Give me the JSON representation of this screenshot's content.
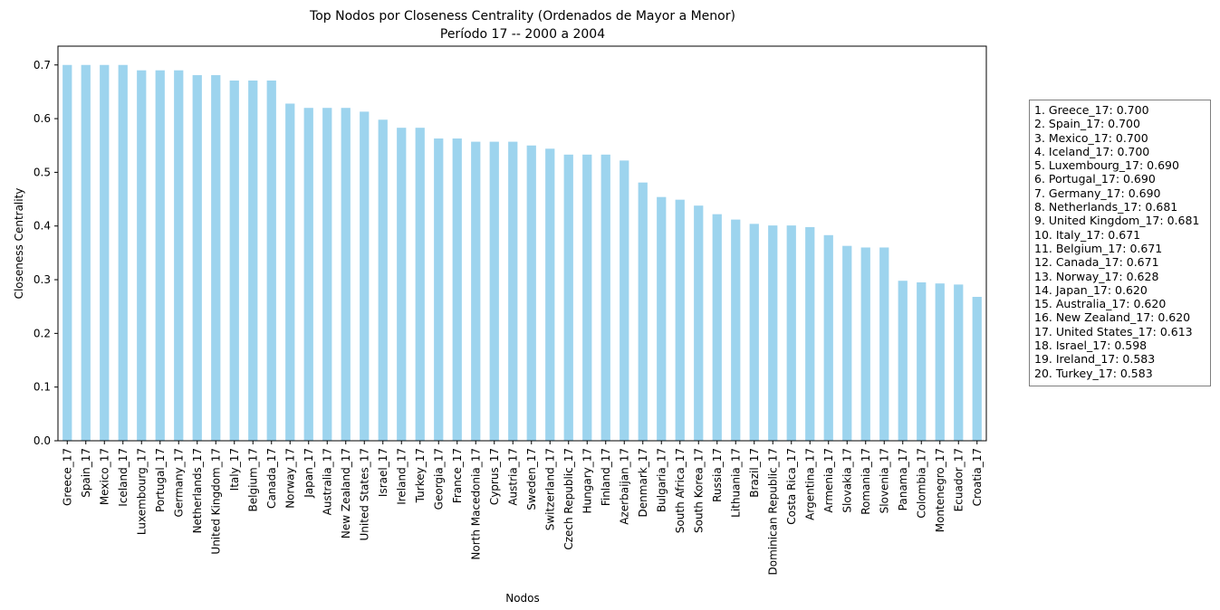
{
  "chart_data": {
    "type": "bar",
    "title": "Top Nodos por Closeness Centrality (Ordenados de Mayor a Menor)",
    "subtitle": "Período 17 -- 2000 a 2004",
    "xlabel": "Nodos",
    "ylabel": "Closeness Centrality",
    "ylim": [
      0,
      0.735
    ],
    "yticks": [
      "0.0",
      "0.1",
      "0.2",
      "0.3",
      "0.4",
      "0.5",
      "0.6",
      "0.7"
    ],
    "bar_color": "#9dd4ee",
    "grid": false,
    "categories": [
      "Greece_17",
      "Spain_17",
      "Mexico_17",
      "Iceland_17",
      "Luxembourg_17",
      "Portugal_17",
      "Germany_17",
      "Netherlands_17",
      "United Kingdom_17",
      "Italy_17",
      "Belgium_17",
      "Canada_17",
      "Norway_17",
      "Japan_17",
      "Australia_17",
      "New Zealand_17",
      "United States_17",
      "Israel_17",
      "Ireland_17",
      "Turkey_17",
      "Georgia_17",
      "France_17",
      "North Macedonia_17",
      "Cyprus_17",
      "Austria_17",
      "Sweden_17",
      "Switzerland_17",
      "Czech Republic_17",
      "Hungary_17",
      "Finland_17",
      "Azerbaijan_17",
      "Denmark_17",
      "Bulgaria_17",
      "South Africa_17",
      "South Korea_17",
      "Russia_17",
      "Lithuania_17",
      "Brazil_17",
      "Dominican Republic_17",
      "Costa Rica_17",
      "Argentina_17",
      "Armenia_17",
      "Slovakia_17",
      "Romania_17",
      "Slovenia_17",
      "Panama_17",
      "Colombia_17",
      "Montenegro_17",
      "Ecuador_17",
      "Croatia_17"
    ],
    "values": [
      0.7,
      0.7,
      0.7,
      0.7,
      0.69,
      0.69,
      0.69,
      0.681,
      0.681,
      0.671,
      0.671,
      0.671,
      0.628,
      0.62,
      0.62,
      0.62,
      0.613,
      0.598,
      0.583,
      0.583,
      0.563,
      0.563,
      0.557,
      0.557,
      0.557,
      0.55,
      0.544,
      0.533,
      0.533,
      0.533,
      0.522,
      0.481,
      0.454,
      0.449,
      0.438,
      0.422,
      0.412,
      0.404,
      0.401,
      0.401,
      0.398,
      0.383,
      0.363,
      0.36,
      0.36,
      0.298,
      0.295,
      0.293,
      0.291,
      0.268
    ],
    "legend_position": "right",
    "legend_entries": [
      "1. Greece_17: 0.700",
      "2. Spain_17: 0.700",
      "3. Mexico_17: 0.700",
      "4. Iceland_17: 0.700",
      "5. Luxembourg_17: 0.690",
      "6. Portugal_17: 0.690",
      "7. Germany_17: 0.690",
      "8. Netherlands_17: 0.681",
      "9. United Kingdom_17: 0.681",
      "10. Italy_17: 0.671",
      "11. Belgium_17: 0.671",
      "12. Canada_17: 0.671",
      "13. Norway_17: 0.628",
      "14. Japan_17: 0.620",
      "15. Australia_17: 0.620",
      "16. New Zealand_17: 0.620",
      "17. United States_17: 0.613",
      "18. Israel_17: 0.598",
      "19. Ireland_17: 0.583",
      "20. Turkey_17: 0.583"
    ]
  }
}
